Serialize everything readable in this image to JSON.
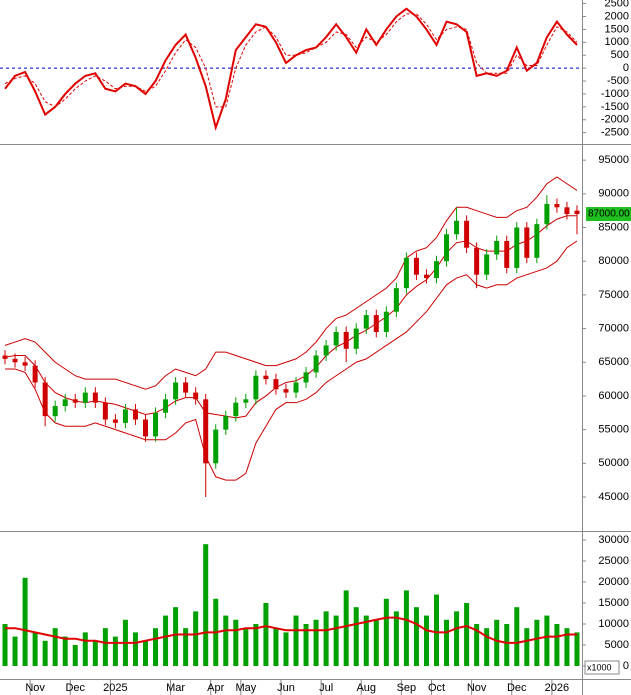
{
  "chart_data": [
    {
      "type": "macd",
      "series": [
        {
          "color": "#e00000",
          "dashed": false,
          "values": [
            -800,
            -300,
            -150,
            -900,
            -1800,
            -1500,
            -1000,
            -600,
            -300,
            -200,
            -800,
            -900,
            -600,
            -700,
            -1000,
            -500,
            300,
            900,
            1300,
            400,
            -700,
            -2300,
            -1200,
            700,
            1200,
            1700,
            1600,
            1000,
            200,
            500,
            700,
            800,
            1200,
            1700,
            1200,
            600,
            1500,
            900,
            1500,
            2000,
            2300,
            2000,
            1500,
            900,
            1800,
            1700,
            1400,
            -300,
            -200,
            -300,
            -100,
            800,
            -100,
            200,
            1200,
            1800,
            1300,
            900
          ]
        },
        {
          "color": "#e00000",
          "dashed": true,
          "values": [
            -600,
            -400,
            -300,
            -600,
            -1300,
            -1500,
            -1200,
            -800,
            -500,
            -300,
            -500,
            -800,
            -700,
            -700,
            -900,
            -700,
            -100,
            600,
            1100,
            800,
            0,
            -1500,
            -1500,
            0,
            900,
            1400,
            1600,
            1200,
            500,
            500,
            600,
            800,
            1000,
            1400,
            1300,
            800,
            1200,
            1000,
            1300,
            1800,
            2100,
            2100,
            1700,
            1100,
            1500,
            1600,
            1500,
            200,
            -200,
            -200,
            -200,
            500,
            100,
            100,
            900,
            1600,
            1400,
            1000
          ]
        }
      ],
      "zero_line_color": "#0000cc",
      "ylim": [
        -2900,
        2600
      ],
      "yticks": [
        -2500,
        -2000,
        -1500,
        -1000,
        -500,
        0,
        500,
        1000,
        1500,
        2000,
        2500
      ]
    },
    {
      "type": "candlestick",
      "categories": [
        null,
        null,
        null,
        "Nov",
        null,
        null,
        null,
        "Dec",
        null,
        null,
        null,
        "2025",
        null,
        null,
        null,
        null,
        null,
        "Mar",
        null,
        null,
        null,
        "Apr",
        null,
        null,
        "May",
        null,
        null,
        null,
        "Jun",
        null,
        null,
        null,
        "Jul",
        null,
        null,
        null,
        "Aug",
        null,
        null,
        null,
        "Sep",
        null,
        null,
        "Oct",
        null,
        null,
        null,
        "Nov",
        null,
        null,
        null,
        "Dec",
        null,
        null,
        null,
        "2026",
        null,
        null
      ],
      "open": [
        66000,
        65500,
        65000,
        64500,
        62000,
        57000,
        58500,
        59500,
        59000,
        60500,
        59000,
        56500,
        56000,
        58000,
        56500,
        54000,
        57500,
        59500,
        62000,
        60500,
        59500,
        50000,
        55000,
        57000,
        59000,
        59500,
        63000,
        62500,
        61000,
        60500,
        62000,
        63500,
        66000,
        67500,
        69500,
        67000,
        70000,
        72000,
        69500,
        72500,
        76000,
        80500,
        78000,
        77500,
        80000,
        84000,
        86000,
        82000,
        78000,
        81000,
        83000,
        79000,
        85000,
        80500,
        85500,
        88500,
        88000,
        87500
      ],
      "high": [
        66800,
        66300,
        65800,
        65300,
        62800,
        59300,
        60300,
        60300,
        61300,
        61300,
        59800,
        57300,
        58800,
        58800,
        57300,
        58300,
        60300,
        62800,
        62800,
        61300,
        60300,
        55800,
        57800,
        59800,
        60300,
        63800,
        63800,
        63300,
        61800,
        62800,
        64300,
        66800,
        68300,
        70300,
        70300,
        70800,
        72800,
        72800,
        73300,
        76800,
        81300,
        81300,
        78800,
        80800,
        84800,
        88000,
        86800,
        82800,
        81800,
        83800,
        83800,
        85800,
        85800,
        86300,
        89800,
        89300,
        88800,
        88300
      ],
      "low": [
        64700,
        64200,
        63700,
        61200,
        55500,
        56200,
        57700,
        58200,
        58200,
        58200,
        55700,
        55200,
        55200,
        55700,
        53200,
        53200,
        56700,
        58700,
        59700,
        58700,
        45000,
        49200,
        54200,
        56200,
        58200,
        58700,
        61700,
        60200,
        59700,
        59700,
        61200,
        62700,
        65200,
        66700,
        65000,
        66200,
        69200,
        68700,
        68700,
        71700,
        75200,
        77200,
        76700,
        76700,
        79200,
        83200,
        81200,
        76000,
        77200,
        80200,
        78200,
        78200,
        79700,
        79700,
        84700,
        87200,
        86200,
        84000
      ],
      "close": [
        65500,
        65000,
        64500,
        62000,
        57000,
        58500,
        59500,
        59000,
        60500,
        59000,
        56500,
        56000,
        58000,
        56500,
        54000,
        57500,
        59500,
        62000,
        60500,
        59500,
        50000,
        55000,
        57000,
        59000,
        59500,
        63000,
        62500,
        61000,
        60500,
        62000,
        63500,
        66000,
        67500,
        69500,
        67000,
        70000,
        72000,
        69500,
        72500,
        76000,
        80500,
        78000,
        77500,
        80000,
        84000,
        86000,
        82000,
        78000,
        81000,
        83000,
        79000,
        85000,
        80500,
        85500,
        88500,
        88000,
        87000,
        87000
      ],
      "up_color": "#00a000",
      "down_color": "#d00000",
      "bands": [
        {
          "color": "#cc0000",
          "values": [
            67500,
            68000,
            68500,
            68000,
            66500,
            65000,
            64000,
            63000,
            62500,
            62500,
            62500,
            62500,
            62000,
            61500,
            61000,
            61500,
            63000,
            64000,
            63500,
            63000,
            64000,
            66500,
            66500,
            66000,
            65500,
            65000,
            64500,
            64500,
            65000,
            65500,
            66500,
            68000,
            70000,
            71500,
            72000,
            73000,
            74000,
            75000,
            76000,
            77500,
            80500,
            81500,
            82000,
            83500,
            86000,
            88000,
            88000,
            87500,
            87000,
            86500,
            86500,
            87500,
            88000,
            89500,
            91500,
            92500,
            91500,
            90500
          ]
        },
        {
          "color": "#cc0000",
          "values": [
            65750,
            66000,
            66000,
            64500,
            62000,
            60500,
            59750,
            59250,
            59000,
            59250,
            59000,
            58750,
            58250,
            57750,
            57250,
            57500,
            58250,
            59250,
            59750,
            59750,
            57500,
            57250,
            57000,
            56750,
            57000,
            59000,
            60000,
            61250,
            62000,
            62250,
            63000,
            64250,
            66000,
            67250,
            68000,
            69000,
            69750,
            70750,
            71750,
            73000,
            75000,
            76250,
            77250,
            79000,
            81250,
            82750,
            83000,
            82000,
            81500,
            81500,
            81500,
            82500,
            83000,
            84000,
            85250,
            86250,
            86750,
            86750
          ]
        },
        {
          "color": "#cc0000",
          "values": [
            64000,
            64000,
            63500,
            61000,
            57500,
            56000,
            55500,
            55500,
            55500,
            56000,
            55500,
            55000,
            54500,
            54000,
            53500,
            53500,
            53500,
            54500,
            56000,
            56500,
            51000,
            48000,
            47500,
            47500,
            48500,
            53000,
            55500,
            58000,
            59000,
            59000,
            59500,
            60500,
            62000,
            63000,
            64000,
            65000,
            65500,
            66500,
            67500,
            68500,
            69500,
            71000,
            72500,
            74500,
            76500,
            77500,
            78000,
            76500,
            76000,
            76500,
            76500,
            77500,
            78000,
            78500,
            79000,
            80000,
            82000,
            83000
          ]
        }
      ],
      "last_value": 87000,
      "last_label": "87000.00",
      "last_label_color": "#1fbf1f",
      "ylim": [
        40100,
        97100
      ],
      "yticks": [
        45000,
        50000,
        55000,
        60000,
        65000,
        70000,
        75000,
        80000,
        85000,
        90000,
        95000
      ]
    },
    {
      "type": "volume",
      "values": [
        10000,
        7000,
        21000,
        8000,
        6000,
        9000,
        7000,
        5000,
        8000,
        6000,
        9000,
        7000,
        11000,
        8000,
        6000,
        9000,
        12000,
        14000,
        9000,
        13000,
        29000,
        16000,
        12000,
        11000,
        9000,
        10000,
        15000,
        9000,
        8000,
        12000,
        10000,
        11000,
        13000,
        12000,
        18000,
        14000,
        12000,
        11000,
        16000,
        13000,
        18000,
        14000,
        12000,
        17000,
        11000,
        13000,
        15000,
        10000,
        9000,
        11000,
        10000,
        14000,
        9000,
        11000,
        12000,
        10000,
        9000,
        8000
      ],
      "color": "#00a000",
      "ma_values": [
        9000,
        9000,
        8500,
        8000,
        7500,
        7000,
        6500,
        6500,
        6000,
        6000,
        5500,
        5500,
        5500,
        5500,
        6000,
        6500,
        7000,
        7500,
        7500,
        7500,
        8000,
        8000,
        8500,
        8500,
        9000,
        9000,
        9500,
        9000,
        8500,
        8500,
        8500,
        8500,
        8500,
        9000,
        9500,
        10000,
        10500,
        11000,
        11500,
        11500,
        11000,
        10000,
        8500,
        8000,
        8000,
        9000,
        9500,
        8500,
        7000,
        6000,
        5500,
        5500,
        6000,
        6500,
        7000,
        7000,
        7500,
        7500
      ],
      "ma_color": "#e00000",
      "unit_label": "x1000",
      "ylim": [
        -2860,
        31900
      ],
      "yticks": [
        0,
        5000,
        10000,
        15000,
        20000,
        25000,
        30000
      ]
    }
  ]
}
